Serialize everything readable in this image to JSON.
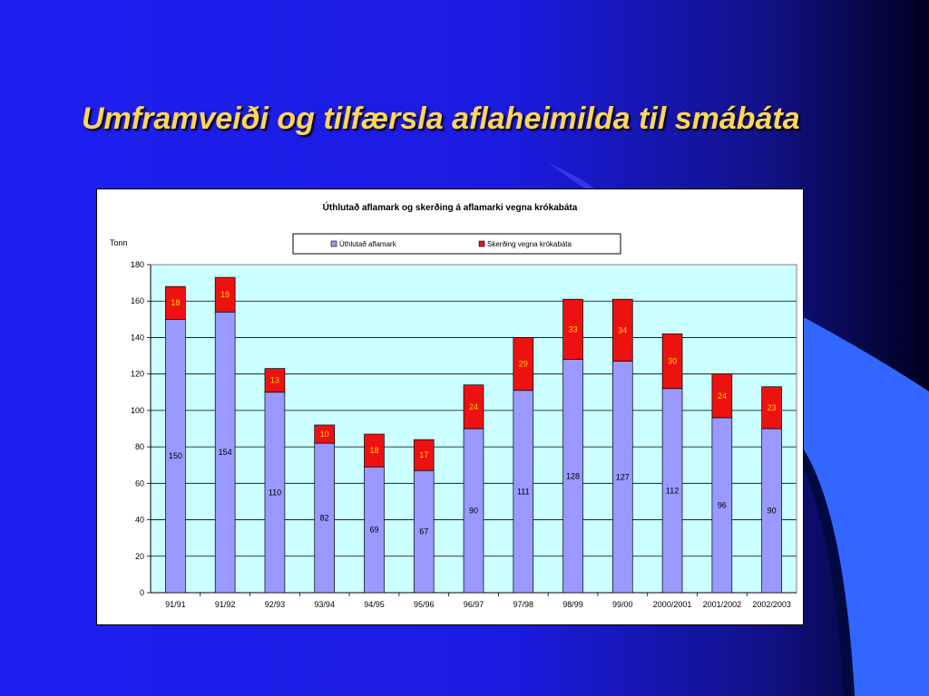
{
  "slide": {
    "title": "Umframveiði og tilfærsla aflaheimilda til smábáta"
  },
  "colors": {
    "title": "#ffd55a",
    "bar_bottom": "#9999ff",
    "bar_top": "#ee1111",
    "plot_bg": "#ccffff",
    "top_label": "#ffd700"
  },
  "chart_data": {
    "type": "bar",
    "stacked": true,
    "title": "Úthlutað aflamark og skerðing á aflamarki vegna krókabáta",
    "ylabel": "Tonn",
    "ylim": [
      0,
      180
    ],
    "ytick_step": 20,
    "grid": true,
    "legend_position": "top",
    "categories": [
      "91/91",
      "91/92",
      "92/93",
      "93/94",
      "94/95",
      "95/96",
      "96/97",
      "97/98",
      "98/99",
      "99/00",
      "2000/2001",
      "2001/2002",
      "2002/2003"
    ],
    "series": [
      {
        "name": "Úthlutað aflamark",
        "color": "#9999ff",
        "values": [
          150,
          154,
          110,
          82,
          69,
          67,
          90,
          111,
          128,
          127,
          112,
          96,
          90
        ]
      },
      {
        "name": "Skerðing vegna krókabáta",
        "color": "#ee1111",
        "values": [
          18,
          19,
          13,
          10,
          18,
          17,
          24,
          29,
          33,
          34,
          30,
          24,
          23
        ]
      }
    ]
  }
}
